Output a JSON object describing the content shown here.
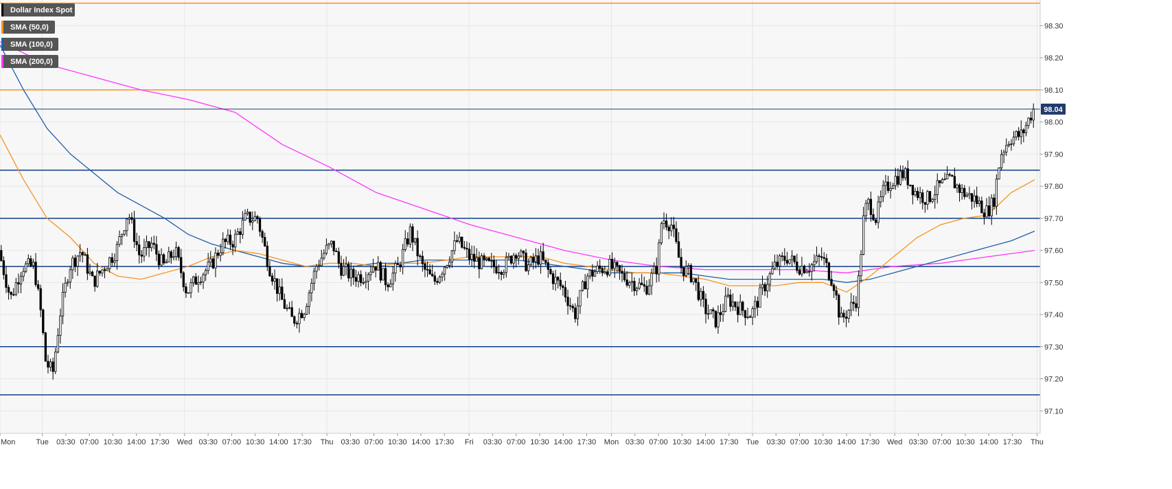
{
  "chart_data": {
    "type": "candlestick",
    "instrument": "Dollar Index Spot",
    "colors": {
      "background": "#f7f7f7",
      "grid": "#e6e6e6",
      "candle_up": "#ffffff",
      "candle_down": "#000000",
      "wick": "#000000",
      "sma50": "#f7931e",
      "sma100": "#1f5fa8",
      "sma200": "#ff33ff",
      "support_resistance": "#0e3d8c",
      "resistance_top": "#f7931e",
      "price_line": "#1f3a6d",
      "price_tag": "#1f3a6d",
      "legend_bg": "#555555"
    },
    "legend": [
      {
        "label": "Dollar Index Spot",
        "color": "#000000"
      },
      {
        "label": "SMA (50,0)",
        "color": "#f7931e"
      },
      {
        "label": "SMA (100,0)",
        "color": "#1f5fa8"
      },
      {
        "label": "SMA (200,0)",
        "color": "#ff33ff"
      }
    ],
    "y_axis": {
      "range": [
        97.03,
        98.38
      ],
      "ticks": [
        "97.10",
        "97.20",
        "97.30",
        "97.40",
        "97.50",
        "97.60",
        "97.70",
        "97.80",
        "97.90",
        "98.00",
        "98.10",
        "98.20",
        "98.30"
      ],
      "tick_values": [
        97.1,
        97.2,
        97.3,
        97.4,
        97.5,
        97.6,
        97.7,
        97.8,
        97.9,
        98.0,
        98.1,
        98.2,
        98.3
      ]
    },
    "x_axis": {
      "range": [
        0,
        44
      ],
      "labels": [
        "Mon",
        "Tue",
        "03:30",
        "07:00",
        "10:30",
        "14:00",
        "17:30",
        "Wed",
        "03:30",
        "07:00",
        "10:30",
        "14:00",
        "17:30",
        "Thu",
        "03:30",
        "07:00",
        "10:30",
        "14:00",
        "17:30",
        "Fri",
        "03:30",
        "07:00",
        "10:30",
        "14:00",
        "17:30",
        "Mon",
        "03:30",
        "07:00",
        "10:30",
        "14:00",
        "17:30",
        "Tue",
        "03:30",
        "07:00",
        "10:30",
        "14:00",
        "17:30",
        "Wed",
        "03:30",
        "07:00",
        "10:30",
        "14:00",
        "17:30",
        "Thu"
      ],
      "positions": [
        0,
        1.8,
        2.8,
        3.8,
        4.8,
        5.8,
        6.8,
        7.85,
        8.85,
        9.85,
        10.85,
        11.85,
        12.85,
        13.9,
        14.9,
        15.9,
        16.9,
        17.9,
        18.9,
        19.95,
        20.95,
        21.95,
        22.95,
        23.95,
        24.95,
        26.0,
        27.0,
        28.0,
        29.0,
        30.0,
        31.0,
        32.0,
        33.0,
        34.0,
        35.0,
        36.0,
        37.0,
        38.05,
        39.05,
        40.05,
        41.05,
        42.05,
        43.05,
        44.1
      ]
    },
    "horizontal_levels": [
      {
        "value": 98.37,
        "color": "#f7931e"
      },
      {
        "value": 98.1,
        "color": "#f7931e"
      },
      {
        "value": 97.85,
        "color": "#0e3d8c"
      },
      {
        "value": 97.7,
        "color": "#0e3d8c"
      },
      {
        "value": 97.55,
        "color": "#0e3d8c"
      },
      {
        "value": 97.3,
        "color": "#0e3d8c"
      },
      {
        "value": 97.15,
        "color": "#0e3d8c"
      }
    ],
    "last_price": {
      "value": 98.04,
      "label": "98.04"
    },
    "price_path": [
      [
        0,
        97.6
      ],
      [
        0.5,
        97.45
      ],
      [
        1,
        97.55
      ],
      [
        1.5,
        97.55
      ],
      [
        1.8,
        97.4
      ],
      [
        2,
        97.25
      ],
      [
        2.3,
        97.22
      ],
      [
        2.6,
        97.4
      ],
      [
        3,
        97.55
      ],
      [
        3.5,
        97.6
      ],
      [
        4,
        97.5
      ],
      [
        4.5,
        97.55
      ],
      [
        5,
        97.6
      ],
      [
        5.5,
        97.72
      ],
      [
        6,
        97.58
      ],
      [
        6.5,
        97.62
      ],
      [
        7,
        97.55
      ],
      [
        7.5,
        97.6
      ],
      [
        8,
        97.47
      ],
      [
        8.5,
        97.52
      ],
      [
        9,
        97.55
      ],
      [
        9.5,
        97.62
      ],
      [
        10,
        97.63
      ],
      [
        10.5,
        97.7
      ],
      [
        11,
        97.7
      ],
      [
        11.5,
        97.55
      ],
      [
        12,
        97.45
      ],
      [
        12.5,
        97.38
      ],
      [
        13,
        97.42
      ],
      [
        13.5,
        97.55
      ],
      [
        13.9,
        97.6
      ],
      [
        14.2,
        97.62
      ],
      [
        14.5,
        97.55
      ],
      [
        15,
        97.52
      ],
      [
        15.5,
        97.52
      ],
      [
        16,
        97.56
      ],
      [
        16.5,
        97.5
      ],
      [
        17,
        97.55
      ],
      [
        17.5,
        97.66
      ],
      [
        18,
        97.55
      ],
      [
        18.5,
        97.5
      ],
      [
        19,
        97.56
      ],
      [
        19.5,
        97.63
      ],
      [
        20,
        97.58
      ],
      [
        20.5,
        97.56
      ],
      [
        21,
        97.55
      ],
      [
        21.5,
        97.55
      ],
      [
        22,
        97.6
      ],
      [
        22.5,
        97.55
      ],
      [
        23,
        97.58
      ],
      [
        23.5,
        97.52
      ],
      [
        24,
        97.48
      ],
      [
        24.5,
        97.4
      ],
      [
        25,
        97.52
      ],
      [
        25.5,
        97.54
      ],
      [
        26,
        97.55
      ],
      [
        26.5,
        97.52
      ],
      [
        27,
        97.5
      ],
      [
        27.5,
        97.48
      ],
      [
        28,
        97.55
      ],
      [
        28.2,
        97.7
      ],
      [
        28.6,
        97.68
      ],
      [
        29,
        97.55
      ],
      [
        29.5,
        97.52
      ],
      [
        30,
        97.42
      ],
      [
        30.5,
        97.38
      ],
      [
        31,
        97.45
      ],
      [
        31.5,
        97.42
      ],
      [
        32,
        97.4
      ],
      [
        32.5,
        97.48
      ],
      [
        33,
        97.55
      ],
      [
        33.5,
        97.58
      ],
      [
        34,
        97.55
      ],
      [
        34.5,
        97.55
      ],
      [
        35,
        97.58
      ],
      [
        35.5,
        97.5
      ],
      [
        35.8,
        97.38
      ],
      [
        36,
        97.4
      ],
      [
        36.5,
        97.45
      ],
      [
        36.8,
        97.72
      ],
      [
        37,
        97.75
      ],
      [
        37.3,
        97.7
      ],
      [
        37.6,
        97.78
      ],
      [
        38,
        97.82
      ],
      [
        38.5,
        97.84
      ],
      [
        39,
        97.78
      ],
      [
        39.5,
        97.76
      ],
      [
        40,
        97.8
      ],
      [
        40.5,
        97.82
      ],
      [
        41,
        97.78
      ],
      [
        41.5,
        97.76
      ],
      [
        42,
        97.72
      ],
      [
        42.3,
        97.75
      ],
      [
        42.6,
        97.9
      ],
      [
        43,
        97.95
      ],
      [
        43.5,
        97.96
      ],
      [
        44,
        98.04
      ]
    ],
    "sma50": [
      [
        0,
        97.96
      ],
      [
        1,
        97.82
      ],
      [
        2,
        97.7
      ],
      [
        3,
        97.64
      ],
      [
        4,
        97.56
      ],
      [
        5,
        97.52
      ],
      [
        6,
        97.51
      ],
      [
        7,
        97.53
      ],
      [
        8,
        97.55
      ],
      [
        9,
        97.58
      ],
      [
        10,
        97.6
      ],
      [
        11,
        97.59
      ],
      [
        12,
        97.57
      ],
      [
        13,
        97.55
      ],
      [
        14,
        97.56
      ],
      [
        15,
        97.56
      ],
      [
        16,
        97.55
      ],
      [
        17,
        97.56
      ],
      [
        18,
        97.56
      ],
      [
        19,
        97.57
      ],
      [
        20,
        97.58
      ],
      [
        21,
        97.58
      ],
      [
        22,
        97.58
      ],
      [
        23,
        97.58
      ],
      [
        24,
        97.56
      ],
      [
        25,
        97.55
      ],
      [
        26,
        97.54
      ],
      [
        27,
        97.53
      ],
      [
        28,
        97.53
      ],
      [
        29,
        97.52
      ],
      [
        30,
        97.51
      ],
      [
        31,
        97.49
      ],
      [
        32,
        97.49
      ],
      [
        33,
        97.49
      ],
      [
        34,
        97.5
      ],
      [
        35,
        97.5
      ],
      [
        36,
        97.47
      ],
      [
        37,
        97.52
      ],
      [
        38,
        97.58
      ],
      [
        39,
        97.64
      ],
      [
        40,
        97.68
      ],
      [
        41,
        97.7
      ],
      [
        42,
        97.71
      ],
      [
        43,
        97.78
      ],
      [
        44,
        97.82
      ]
    ],
    "sma100": [
      [
        0,
        98.24
      ],
      [
        1,
        98.1
      ],
      [
        2,
        97.98
      ],
      [
        3,
        97.9
      ],
      [
        4,
        97.84
      ],
      [
        5,
        97.78
      ],
      [
        6,
        97.74
      ],
      [
        7,
        97.7
      ],
      [
        8,
        97.65
      ],
      [
        9,
        97.62
      ],
      [
        10,
        97.6
      ],
      [
        11,
        97.58
      ],
      [
        12,
        97.56
      ],
      [
        13,
        97.55
      ],
      [
        14,
        97.55
      ],
      [
        15,
        97.55
      ],
      [
        16,
        97.56
      ],
      [
        17,
        97.56
      ],
      [
        18,
        97.57
      ],
      [
        19,
        97.57
      ],
      [
        20,
        97.57
      ],
      [
        21,
        97.57
      ],
      [
        22,
        97.57
      ],
      [
        23,
        97.56
      ],
      [
        24,
        97.55
      ],
      [
        25,
        97.54
      ],
      [
        26,
        97.53
      ],
      [
        27,
        97.53
      ],
      [
        28,
        97.53
      ],
      [
        29,
        97.53
      ],
      [
        30,
        97.52
      ],
      [
        31,
        97.51
      ],
      [
        32,
        97.51
      ],
      [
        33,
        97.51
      ],
      [
        34,
        97.51
      ],
      [
        35,
        97.51
      ],
      [
        36,
        97.5
      ],
      [
        37,
        97.51
      ],
      [
        38,
        97.53
      ],
      [
        39,
        97.55
      ],
      [
        40,
        97.57
      ],
      [
        41,
        97.59
      ],
      [
        42,
        97.61
      ],
      [
        43,
        97.63
      ],
      [
        44,
        97.66
      ]
    ],
    "sma200": [
      [
        0,
        98.25
      ],
      [
        2,
        98.18
      ],
      [
        4,
        98.14
      ],
      [
        6,
        98.1
      ],
      [
        8,
        98.07
      ],
      [
        10,
        98.03
      ],
      [
        12,
        97.93
      ],
      [
        14,
        97.86
      ],
      [
        16,
        97.78
      ],
      [
        18,
        97.73
      ],
      [
        20,
        97.68
      ],
      [
        22,
        97.64
      ],
      [
        24,
        97.6
      ],
      [
        26,
        97.57
      ],
      [
        28,
        97.55
      ],
      [
        30,
        97.54
      ],
      [
        32,
        97.54
      ],
      [
        34,
        97.54
      ],
      [
        36,
        97.53
      ],
      [
        38,
        97.55
      ],
      [
        40,
        97.56
      ],
      [
        42,
        97.58
      ],
      [
        44,
        97.6
      ]
    ]
  }
}
